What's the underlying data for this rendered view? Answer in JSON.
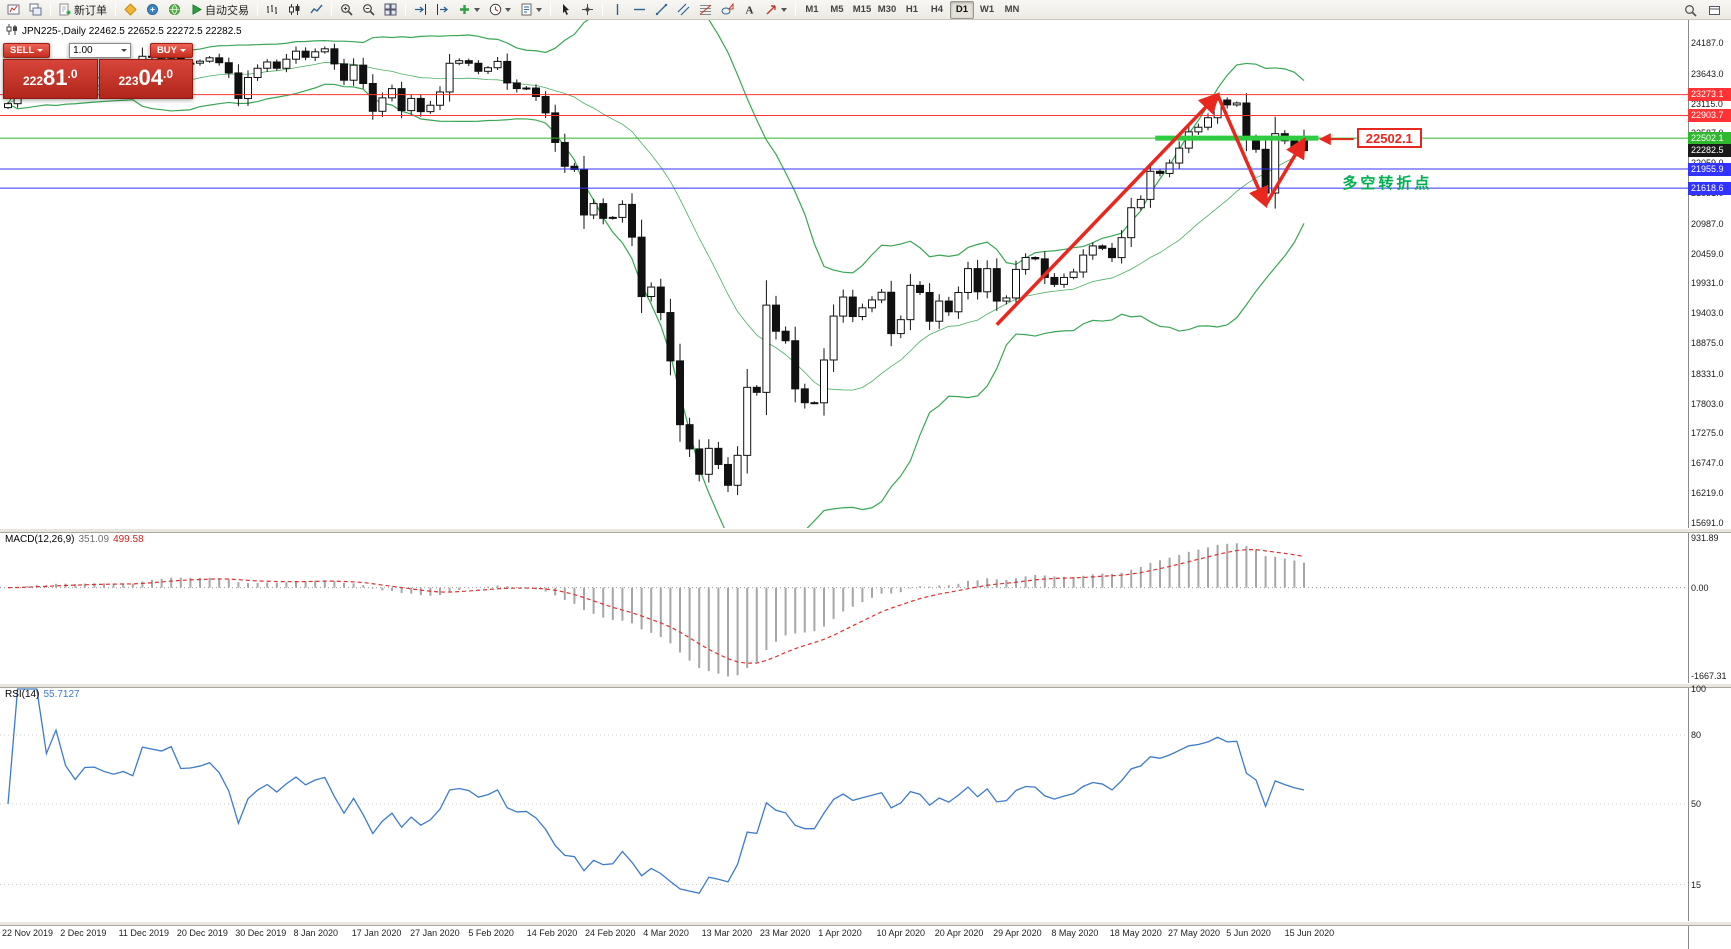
{
  "toolbar": {
    "items": [
      {
        "type": "icon",
        "name": "charts-icon"
      },
      {
        "type": "icon",
        "name": "window-layout-icon"
      },
      {
        "type": "sep"
      },
      {
        "type": "button",
        "name": "new-order-button",
        "icon": "new-order-icon",
        "label": "新订单"
      },
      {
        "type": "sep"
      },
      {
        "type": "icon",
        "name": "metaeditor-icon"
      },
      {
        "type": "icon",
        "name": "market-icon"
      },
      {
        "type": "icon",
        "name": "community-icon"
      },
      {
        "type": "button",
        "name": "autotrading-button",
        "icon": "play-icon",
        "label": "自动交易"
      },
      {
        "type": "sep"
      },
      {
        "type": "icon",
        "name": "bar-chart-icon"
      },
      {
        "type": "icon",
        "name": "candlestick-chart-icon"
      },
      {
        "type": "icon",
        "name": "line-chart-icon"
      },
      {
        "type": "sep"
      },
      {
        "type": "icon",
        "name": "zoom-in-icon"
      },
      {
        "type": "icon",
        "name": "zoom-out-icon"
      },
      {
        "type": "icon",
        "name": "tile-windows-icon"
      },
      {
        "type": "sep"
      },
      {
        "type": "icon",
        "name": "auto-scroll-icon"
      },
      {
        "type": "icon",
        "name": "chart-shift-icon"
      },
      {
        "type": "dropdown",
        "name": "new-chart-button",
        "icon": "new-chart-icon"
      },
      {
        "type": "dropdown",
        "name": "periods-button",
        "icon": "periods-icon"
      },
      {
        "type": "dropdown",
        "name": "templates-button",
        "icon": "templates-icon"
      },
      {
        "type": "sep"
      },
      {
        "type": "icon",
        "name": "cursor-icon"
      },
      {
        "type": "icon",
        "name": "crosshair-icon"
      },
      {
        "type": "sep"
      },
      {
        "type": "icon",
        "name": "vertical-line-icon"
      },
      {
        "type": "icon",
        "name": "horizontal-line-icon"
      },
      {
        "type": "icon",
        "name": "trendline-icon"
      },
      {
        "type": "icon",
        "name": "channel-icon"
      },
      {
        "type": "icon",
        "name": "fibonacci-icon"
      },
      {
        "type": "icon",
        "name": "shapes-icon"
      },
      {
        "type": "icon",
        "name": "text-icon"
      },
      {
        "type": "dropdown",
        "name": "arrows-button",
        "icon": "arrows-icon"
      },
      {
        "type": "sep"
      }
    ],
    "timeframes": [
      "M1",
      "M5",
      "M15",
      "M30",
      "H1",
      "H4",
      "D1",
      "W1",
      "MN"
    ],
    "active_timeframe": "D1",
    "right_icons": [
      {
        "name": "search-icon"
      },
      {
        "name": "panel-icon"
      }
    ]
  },
  "symbol_line": {
    "text": "JPN225-,Daily 22462.5 22652.5 22272.5 22282.5"
  },
  "trade_panel": {
    "sell_label": "SELL",
    "buy_label": "BUY",
    "volume": "1.00",
    "sell_price": "22281.0",
    "buy_price": "22304.0"
  },
  "chart_data": {
    "type": "candlestick",
    "symbol": "JPN225-",
    "period": "Daily",
    "ohlc_last": [
      22462.5,
      22652.5,
      22272.5,
      22282.5
    ],
    "closes": [
      23113,
      23293,
      23373,
      23410,
      23294,
      23530,
      23380,
      23300,
      23435,
      23440,
      23410,
      23390,
      23425,
      23392,
      23952,
      23934,
      23917,
      24023,
      23821,
      23830,
      23865,
      23925,
      23838,
      23657,
      23205,
      23576,
      23740,
      23851,
      23740,
      23900,
      24042,
      23934,
      24031,
      24084,
      23817,
      23528,
      23795,
      23470,
      22978,
      23216,
      23379,
      22990,
      23206,
      22972,
      23085,
      23320,
      23828,
      23874,
      23828,
      23686,
      23749,
      23861,
      23480,
      23380,
      23390,
      23240,
      22950,
      22426,
      22005,
      21948,
      21143,
      21344,
      21083,
      21100,
      21330,
      20750,
      19699,
      19867,
      19416,
      18560,
      17431,
      17002,
      16553,
      17012,
      16727,
      16358,
      16888,
      18092,
      18003,
      19547,
      19085,
      18917,
      18065,
      17820,
      17818,
      18576,
      19353,
      19690,
      19345,
      19499,
      19639,
      19775,
      19043,
      19290,
      19897,
      19771,
      19262,
      19619,
      19429,
      19771,
      20194,
      19783,
      20193,
      19619,
      19674,
      20179,
      20390,
      20366,
      20037,
      19914,
      20037,
      20133,
      20433,
      20595,
      20552,
      20388,
      20741,
      21271,
      21419,
      21916,
      21878,
      22062,
      22326,
      22614,
      22696,
      22864,
      23178,
      23091,
      23125,
      22473,
      22305,
      21531,
      22582,
      22456,
      22355,
      22282.5
    ],
    "candle_colors": {
      "up_fill": "#ffffff",
      "down_fill": "#111111",
      "border": "#111111",
      "wick": "#111111"
    },
    "bands": {
      "period": 20,
      "deviation": 2,
      "color": "#3aa655"
    },
    "price_axis": {
      "range": [
        24594,
        15602
      ],
      "labels": [
        "24187.0",
        "23643.0",
        "23115.0",
        "22587.0",
        "22059.0",
        "21531.0",
        "20987.0",
        "20459.0",
        "19931.0",
        "19403.0",
        "18875.0",
        "18331.0",
        "17803.0",
        "17275.0",
        "16747.0",
        "16219.0",
        "15691.0"
      ]
    },
    "level_lines": [
      {
        "price": 23273.1,
        "color": "#ff3333"
      },
      {
        "price": 22903.7,
        "color": "#ff3333"
      },
      {
        "price": 22502.1,
        "color": "#2eb82e"
      },
      {
        "price": 21955.9,
        "color": "#3333ff"
      },
      {
        "price": 21618.6,
        "color": "#3333ff"
      }
    ],
    "current_price": {
      "value": 22282.5,
      "badge_color": "#1a1a1a"
    },
    "macd": {
      "label": "MACD(12,26,9)",
      "value_main": "351.09",
      "value_signal": "499.58",
      "range": [
        1050,
        -1800
      ],
      "axis_labels": [
        {
          "v": 931.89,
          "t": "931.89"
        },
        {
          "v": 0,
          "t": "0.00"
        },
        {
          "v": -1667.31,
          "t": "-1667.31"
        }
      ],
      "histogram_color": "#a6a6a6",
      "signal_color": "#e03131"
    },
    "rsi": {
      "label": "RSI(14)",
      "value": "55.7127",
      "range": [
        0,
        100
      ],
      "axis_labels": [
        {
          "v": 100,
          "t": "100"
        },
        {
          "v": 80,
          "t": "80"
        },
        {
          "v": 50,
          "t": "50"
        },
        {
          "v": 15,
          "t": "15"
        }
      ],
      "levels": [
        80,
        50,
        15
      ],
      "line_color": "#3e7bc8"
    },
    "dates": [
      "22 Nov 2019",
      "2 Dec 2019",
      "11 Dec 2019",
      "20 Dec 2019",
      "30 Dec 2019",
      "8 Jan 2020",
      "17 Jan 2020",
      "27 Jan 2020",
      "5 Feb 2020",
      "14 Feb 2020",
      "24 Feb 2020",
      "4 Mar 2020",
      "13 Mar 2020",
      "23 Mar 2020",
      "1 Apr 2020",
      "10 Apr 2020",
      "20 Apr 2020",
      "29 Apr 2020",
      "8 May 2020",
      "18 May 2020",
      "27 May 2020",
      "5 Jun 2020",
      "15 Jun 2020"
    ],
    "annotations": {
      "zigzag": {
        "color": "#e8281e",
        "width": 3.5,
        "points": [
          {
            "i": 103,
            "p": 19200
          },
          {
            "i": 126,
            "p": 23270
          },
          {
            "i": 131,
            "p": 21320
          },
          {
            "i": 135,
            "p": 22470
          }
        ]
      },
      "highlight": {
        "p": 22502.1,
        "i1": 119.5,
        "i2": 136.5,
        "color": "#2ecc40",
        "width": 5
      },
      "price_label": "22502.1",
      "price_label_pos": {
        "i": 140.5,
        "p": 22502.1
      },
      "turning_point_text": "多空转折点",
      "turning_point_pos": {
        "i": 139,
        "p": 21745
      }
    }
  }
}
